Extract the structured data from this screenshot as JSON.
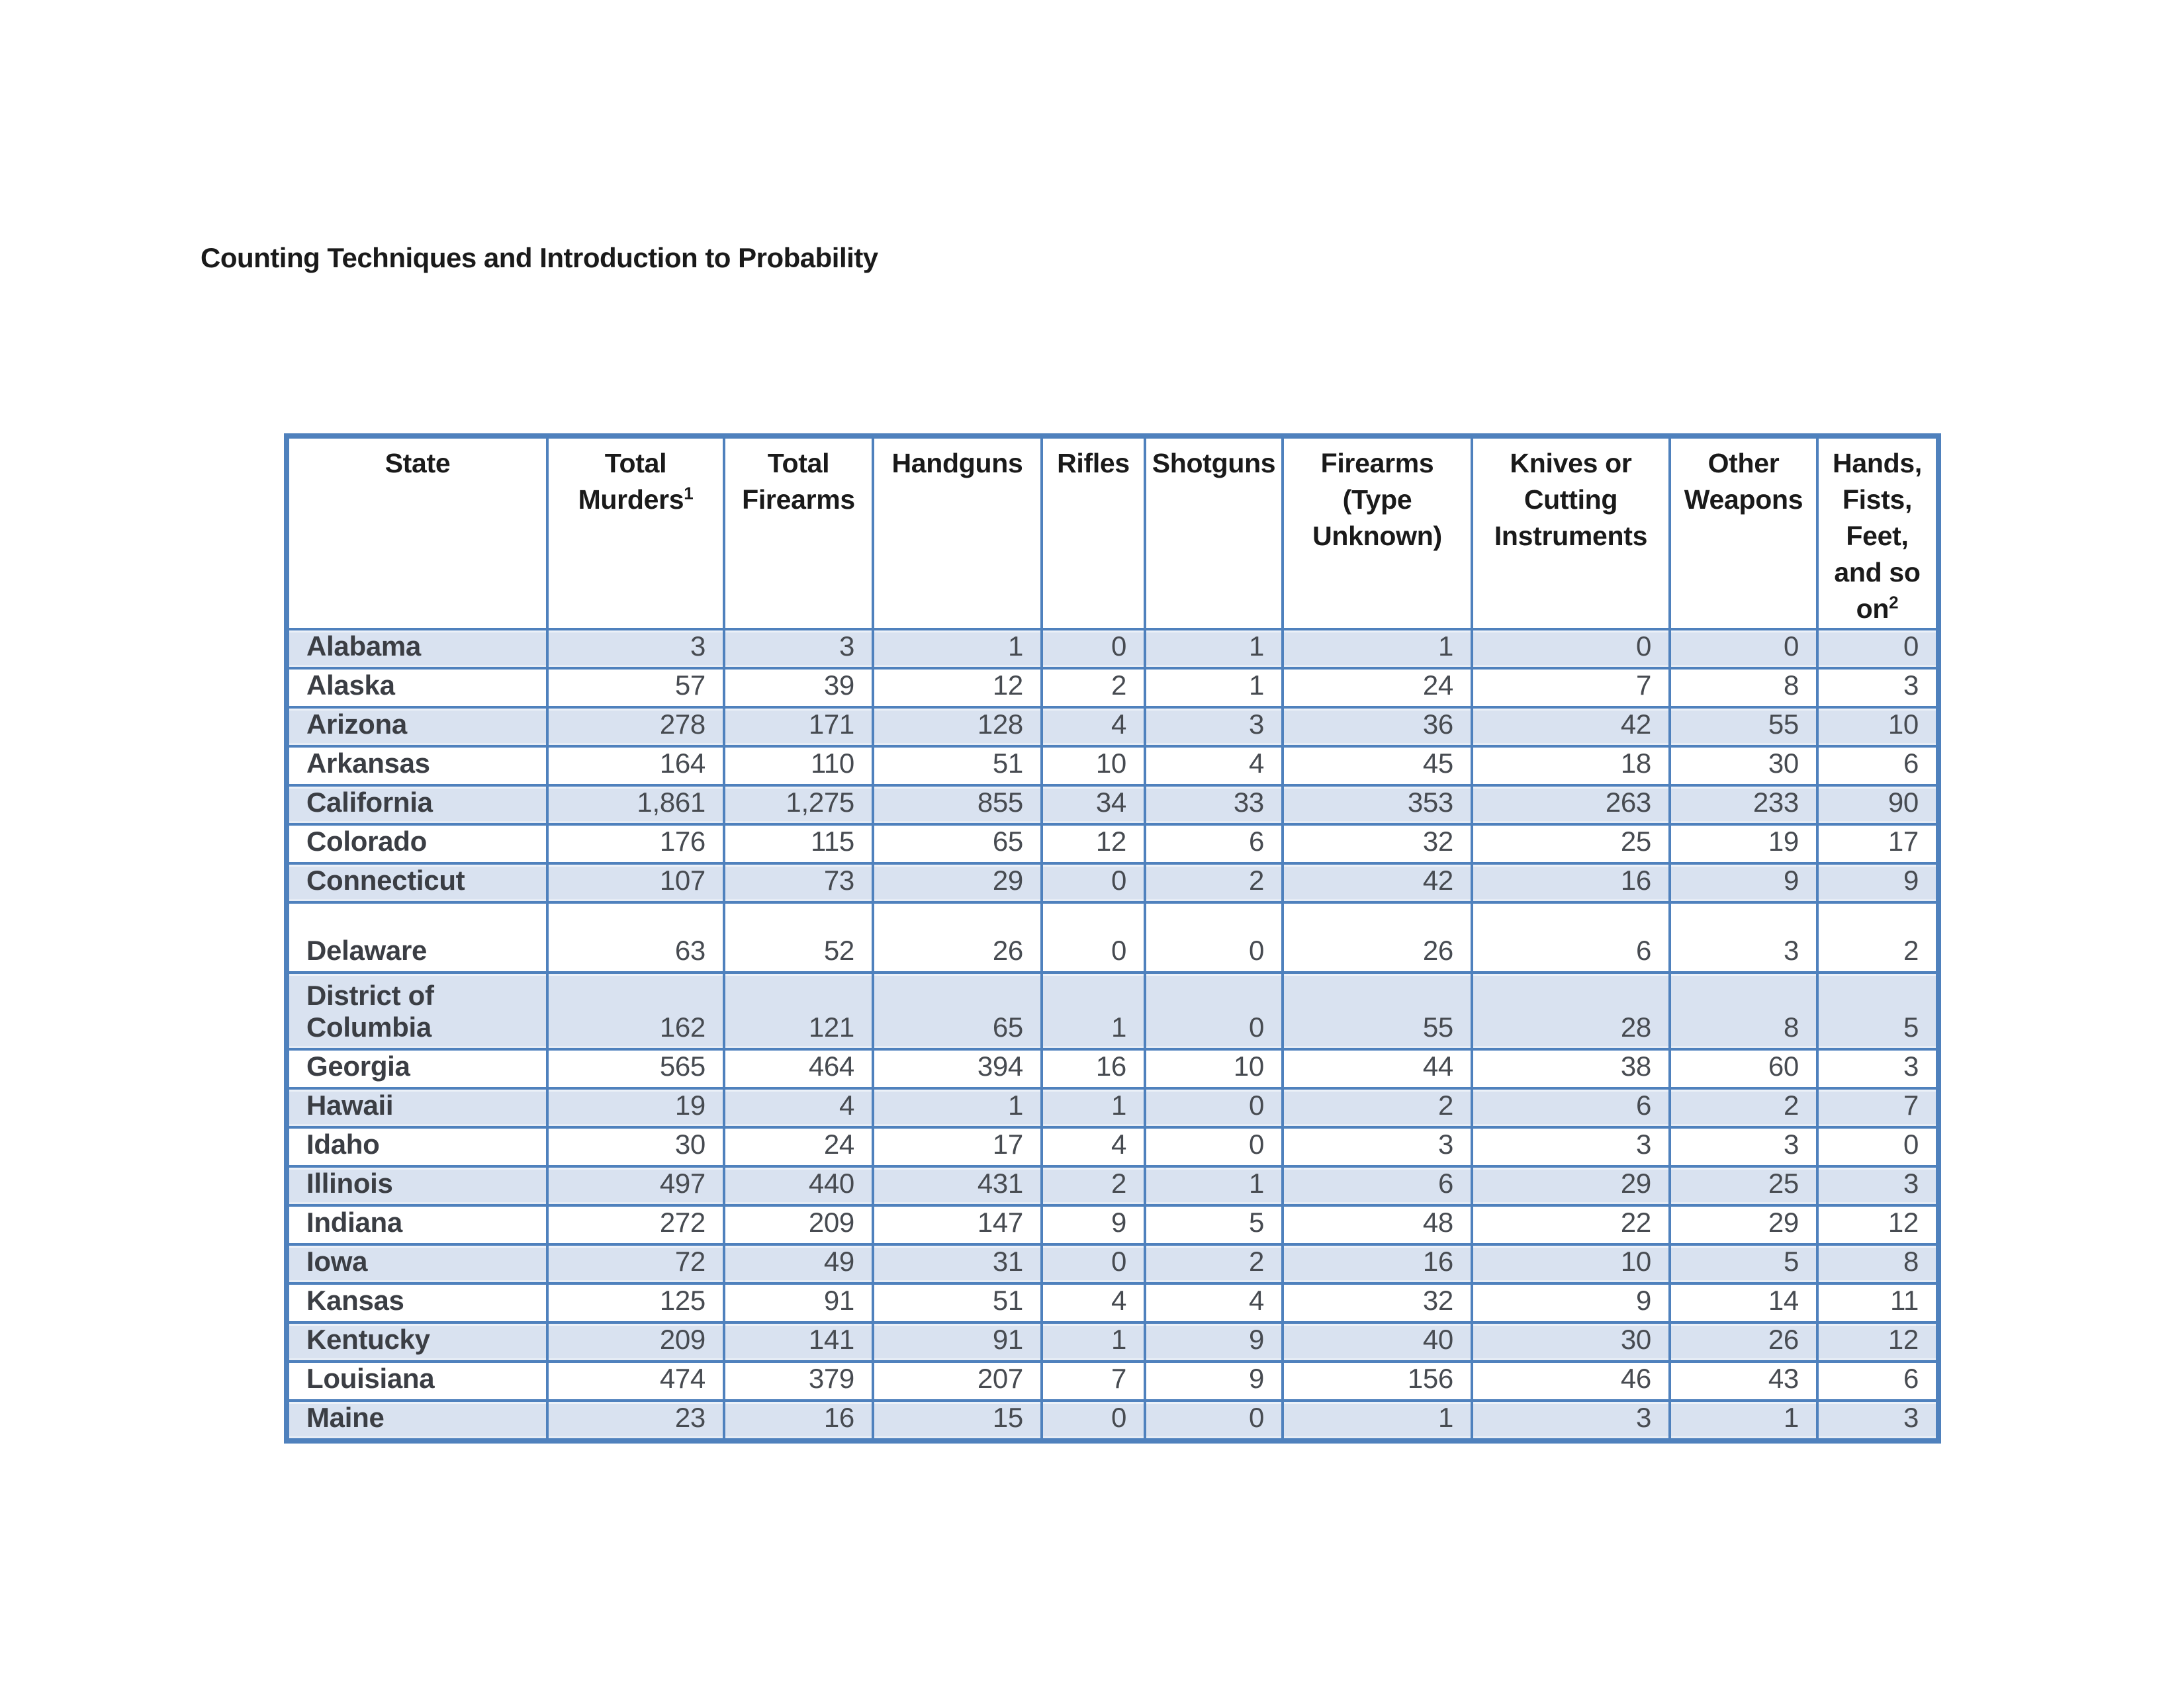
{
  "page": {
    "title": "Counting Techniques and Introduction to Probability"
  },
  "colors": {
    "table_border": "#4f81bd",
    "row_band": "#d9e2f0"
  },
  "table": {
    "columns": [
      {
        "label": "State"
      },
      {
        "label": "Total Murders",
        "sup": "1"
      },
      {
        "label": "Total Firearms"
      },
      {
        "label": "Handguns"
      },
      {
        "label": "Rifles"
      },
      {
        "label": "Shotguns"
      },
      {
        "label": "Firearms (Type Unknown)"
      },
      {
        "label": "Knives or Cutting Instruments"
      },
      {
        "label": "Other Weapons"
      },
      {
        "label": "Hands, Fists, Feet, and so on",
        "sup": "2"
      }
    ],
    "rows": [
      {
        "state": "Alabama",
        "values": [
          "3",
          "3",
          "1",
          "0",
          "1",
          "1",
          "0",
          "0",
          "0"
        ],
        "shaded": true,
        "size": "normal"
      },
      {
        "state": "Alaska",
        "values": [
          "57",
          "39",
          "12",
          "2",
          "1",
          "24",
          "7",
          "8",
          "3"
        ],
        "shaded": false,
        "size": "normal"
      },
      {
        "state": "Arizona",
        "values": [
          "278",
          "171",
          "128",
          "4",
          "3",
          "36",
          "42",
          "55",
          "10"
        ],
        "shaded": true,
        "size": "normal"
      },
      {
        "state": "Arkansas",
        "values": [
          "164",
          "110",
          "51",
          "10",
          "4",
          "45",
          "18",
          "30",
          "6"
        ],
        "shaded": false,
        "size": "normal"
      },
      {
        "state": "California",
        "values": [
          "1,861",
          "1,275",
          "855",
          "34",
          "33",
          "353",
          "263",
          "233",
          "90"
        ],
        "shaded": true,
        "size": "normal"
      },
      {
        "state": "Colorado",
        "values": [
          "176",
          "115",
          "65",
          "12",
          "6",
          "32",
          "25",
          "19",
          "17"
        ],
        "shaded": false,
        "size": "normal"
      },
      {
        "state": "Connecticut",
        "values": [
          "107",
          "73",
          "29",
          "0",
          "2",
          "42",
          "16",
          "9",
          "9"
        ],
        "shaded": true,
        "size": "normal"
      },
      {
        "state": "Delaware",
        "values": [
          "63",
          "52",
          "26",
          "0",
          "0",
          "26",
          "6",
          "3",
          "2"
        ],
        "shaded": false,
        "size": "tall"
      },
      {
        "state": "District of Columbia",
        "values": [
          "162",
          "121",
          "65",
          "1",
          "0",
          "55",
          "28",
          "8",
          "5"
        ],
        "shaded": true,
        "size": "xtall"
      },
      {
        "state": "Georgia",
        "values": [
          "565",
          "464",
          "394",
          "16",
          "10",
          "44",
          "38",
          "60",
          "3"
        ],
        "shaded": false,
        "size": "normal"
      },
      {
        "state": "Hawaii",
        "values": [
          "19",
          "4",
          "1",
          "1",
          "0",
          "2",
          "6",
          "2",
          "7"
        ],
        "shaded": true,
        "size": "normal"
      },
      {
        "state": "Idaho",
        "values": [
          "30",
          "24",
          "17",
          "4",
          "0",
          "3",
          "3",
          "3",
          "0"
        ],
        "shaded": false,
        "size": "normal"
      },
      {
        "state": "Illinois",
        "values": [
          "497",
          "440",
          "431",
          "2",
          "1",
          "6",
          "29",
          "25",
          "3"
        ],
        "shaded": true,
        "size": "normal"
      },
      {
        "state": "Indiana",
        "values": [
          "272",
          "209",
          "147",
          "9",
          "5",
          "48",
          "22",
          "29",
          "12"
        ],
        "shaded": false,
        "size": "normal"
      },
      {
        "state": "Iowa",
        "values": [
          "72",
          "49",
          "31",
          "0",
          "2",
          "16",
          "10",
          "5",
          "8"
        ],
        "shaded": true,
        "size": "normal"
      },
      {
        "state": "Kansas",
        "values": [
          "125",
          "91",
          "51",
          "4",
          "4",
          "32",
          "9",
          "14",
          "11"
        ],
        "shaded": false,
        "size": "normal"
      },
      {
        "state": "Kentucky",
        "values": [
          "209",
          "141",
          "91",
          "1",
          "9",
          "40",
          "30",
          "26",
          "12"
        ],
        "shaded": true,
        "size": "normal"
      },
      {
        "state": "Louisiana",
        "values": [
          "474",
          "379",
          "207",
          "7",
          "9",
          "156",
          "46",
          "43",
          "6"
        ],
        "shaded": false,
        "size": "normal"
      },
      {
        "state": "Maine",
        "values": [
          "23",
          "16",
          "15",
          "0",
          "0",
          "1",
          "3",
          "1",
          "3"
        ],
        "shaded": true,
        "size": "normal"
      }
    ]
  }
}
